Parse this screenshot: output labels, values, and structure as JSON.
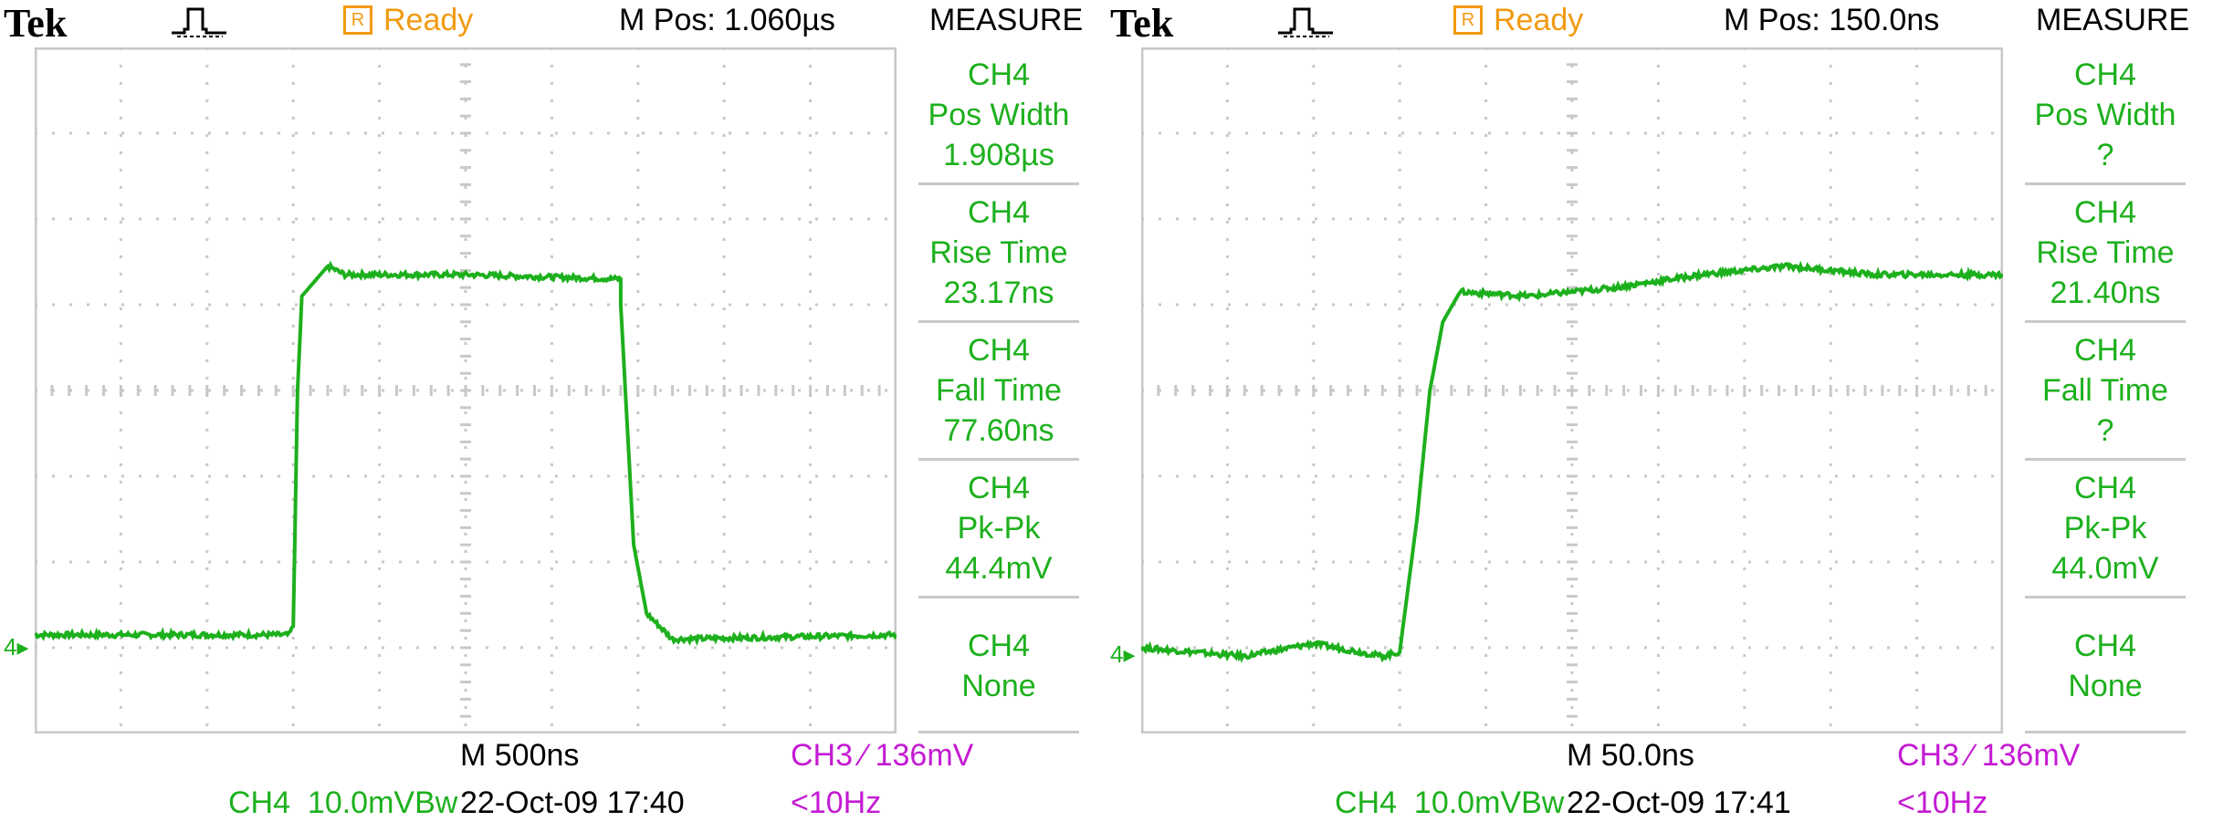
{
  "colors": {
    "trace": "#1db01d",
    "grid": "#c8c8c8",
    "status": "#f29a12",
    "trigger": "#c41ad3"
  },
  "scopes": [
    {
      "brand": "Tek",
      "trigger_icon": "pulse-trigger-icon",
      "status_box": "R",
      "status": "Ready",
      "m_pos": "M Pos: 1.060µs",
      "measure_title": "MEASURE",
      "measurements": [
        [
          "CH4",
          "Pos Width",
          "1.908µs"
        ],
        [
          "CH4",
          "Rise Time",
          "23.17ns"
        ],
        [
          "CH4",
          "Fall Time",
          "77.60ns"
        ],
        [
          "CH4",
          "Pk-Pk",
          "44.4mV"
        ],
        [
          "CH4",
          "None"
        ]
      ],
      "ground_marker": "4▸",
      "timebase": "M 500ns",
      "trigger": "CH3 ∕ 136mV",
      "channel": "CH4  10.0mVBᴡ",
      "datetime": "22-Oct-09 17:40",
      "freq": "<10Hz"
    },
    {
      "brand": "Tek",
      "trigger_icon": "pulse-trigger-icon",
      "status_box": "R",
      "status": "Ready",
      "m_pos": "M Pos: 150.0ns",
      "measure_title": "MEASURE",
      "measurements": [
        [
          "CH4",
          "Pos Width",
          "?"
        ],
        [
          "CH4",
          "Rise Time",
          "21.40ns"
        ],
        [
          "CH4",
          "Fall Time",
          "?"
        ],
        [
          "CH4",
          "Pk-Pk",
          "44.0mV"
        ],
        [
          "CH4",
          "None"
        ]
      ],
      "ground_marker": "4▸",
      "timebase": "M 50.0ns",
      "trigger": "CH3 ∕ 136mV",
      "channel": "CH4  10.0mVBᴡ",
      "datetime": "22-Oct-09 17:41",
      "freq": "<10Hz"
    }
  ],
  "chart_data": [
    {
      "type": "line",
      "title": "",
      "xlabel": "",
      "ylabel": "",
      "grid": true,
      "xlim": [
        0,
        10
      ],
      "ylim": [
        -4,
        4
      ],
      "series": [
        {
          "values_div": [
            [
              0,
              -2.85
            ],
            [
              2.95,
              -2.85
            ],
            [
              3.0,
              -2.75
            ],
            [
              3.05,
              0
            ],
            [
              3.1,
              1.1
            ],
            [
              3.4,
              1.45
            ],
            [
              3.6,
              1.35
            ],
            [
              5.0,
              1.35
            ],
            [
              6.8,
              1.3
            ],
            [
              6.8,
              1.0
            ],
            [
              6.95,
              -1.8
            ],
            [
              7.1,
              -2.6
            ],
            [
              7.4,
              -2.9
            ],
            [
              10,
              -2.85
            ]
          ]
        }
      ]
    },
    {
      "type": "line",
      "title": "",
      "xlabel": "",
      "ylabel": "",
      "grid": true,
      "xlim": [
        0,
        10
      ],
      "ylim": [
        -4,
        4
      ],
      "series": [
        {
          "values_div": [
            [
              0,
              -3.0
            ],
            [
              1.2,
              -3.1
            ],
            [
              2.0,
              -2.95
            ],
            [
              2.8,
              -3.1
            ],
            [
              3.0,
              -3.05
            ],
            [
              3.2,
              -1.5
            ],
            [
              3.35,
              0
            ],
            [
              3.5,
              0.8
            ],
            [
              3.7,
              1.15
            ],
            [
              4.5,
              1.1
            ],
            [
              5.5,
              1.2
            ],
            [
              6.5,
              1.35
            ],
            [
              7.5,
              1.45
            ],
            [
              8.5,
              1.35
            ],
            [
              10,
              1.35
            ]
          ]
        }
      ]
    }
  ]
}
